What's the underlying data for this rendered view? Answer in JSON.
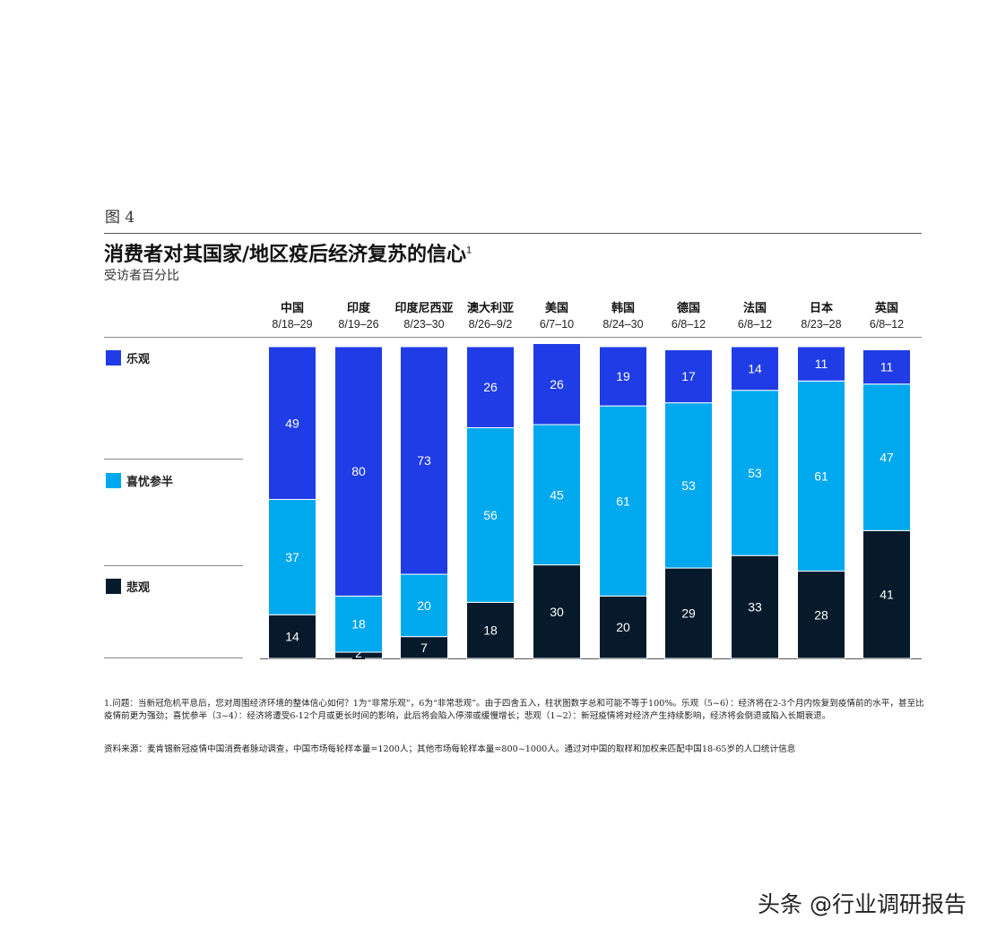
{
  "figure_label": "图 4",
  "chart_data": {
    "type": "bar",
    "stacked": true,
    "title": "消费者对其国家/地区疫后经济复苏的信心",
    "title_superscript": "1",
    "subtitle": "受访者百分比",
    "categories": [
      {
        "name": "中国",
        "dates": "8/18–29"
      },
      {
        "name": "印度",
        "dates": "8/19–26"
      },
      {
        "name": "印度尼西亚",
        "dates": "8/23–30"
      },
      {
        "name": "澳大利亚",
        "dates": "8/26–9/2"
      },
      {
        "name": "美国",
        "dates": "6/7–10"
      },
      {
        "name": "韩国",
        "dates": "8/24–30"
      },
      {
        "name": "德国",
        "dates": "6/8–12"
      },
      {
        "name": "法国",
        "dates": "6/8–12"
      },
      {
        "name": "日本",
        "dates": "8/23–28"
      },
      {
        "name": "英国",
        "dates": "6/8–12"
      }
    ],
    "series": [
      {
        "name": "乐观",
        "color": "#1f3ce6",
        "values": [
          49,
          80,
          73,
          26,
          26,
          19,
          17,
          14,
          11,
          11
        ]
      },
      {
        "name": "喜忧参半",
        "color": "#00a8ee",
        "values": [
          37,
          18,
          20,
          56,
          45,
          61,
          53,
          53,
          61,
          47
        ]
      },
      {
        "name": "悲观",
        "color": "#071a2c",
        "values": [
          14,
          2,
          7,
          18,
          30,
          20,
          29,
          33,
          28,
          41
        ]
      }
    ],
    "ylim": [
      0,
      100
    ],
    "legend": "left"
  },
  "notes": {
    "footnote": "1.问题：当新冠危机平息后，您对周围经济环境的整体信心如何？1为“非常乐观”，6为“非常悲观”。由于四舍五入，柱状图数字总和可能不等于100%。乐观（5~6）：经济将在2-3个月内恢复到疫情前的水平，甚至比疫情前更为强劲；喜忧参半（3~4）：经济将遭受6-12个月或更长时间的影响，此后将会陷入停滞或缓慢增长；悲观（1~2）：新冠疫情将对经济产生持续影响，经济将会倒退或陷入长期衰退。",
    "source": "资料来源：麦肯锡新冠疫情中国消费者脉动调查，中国市场每轮样本量=1200人；其他市场每轮样本量=800~1000人。通过对中国的取样和加权来匹配中国18-65岁的人口统计信息"
  },
  "watermark": "头条 @行业调研报告"
}
